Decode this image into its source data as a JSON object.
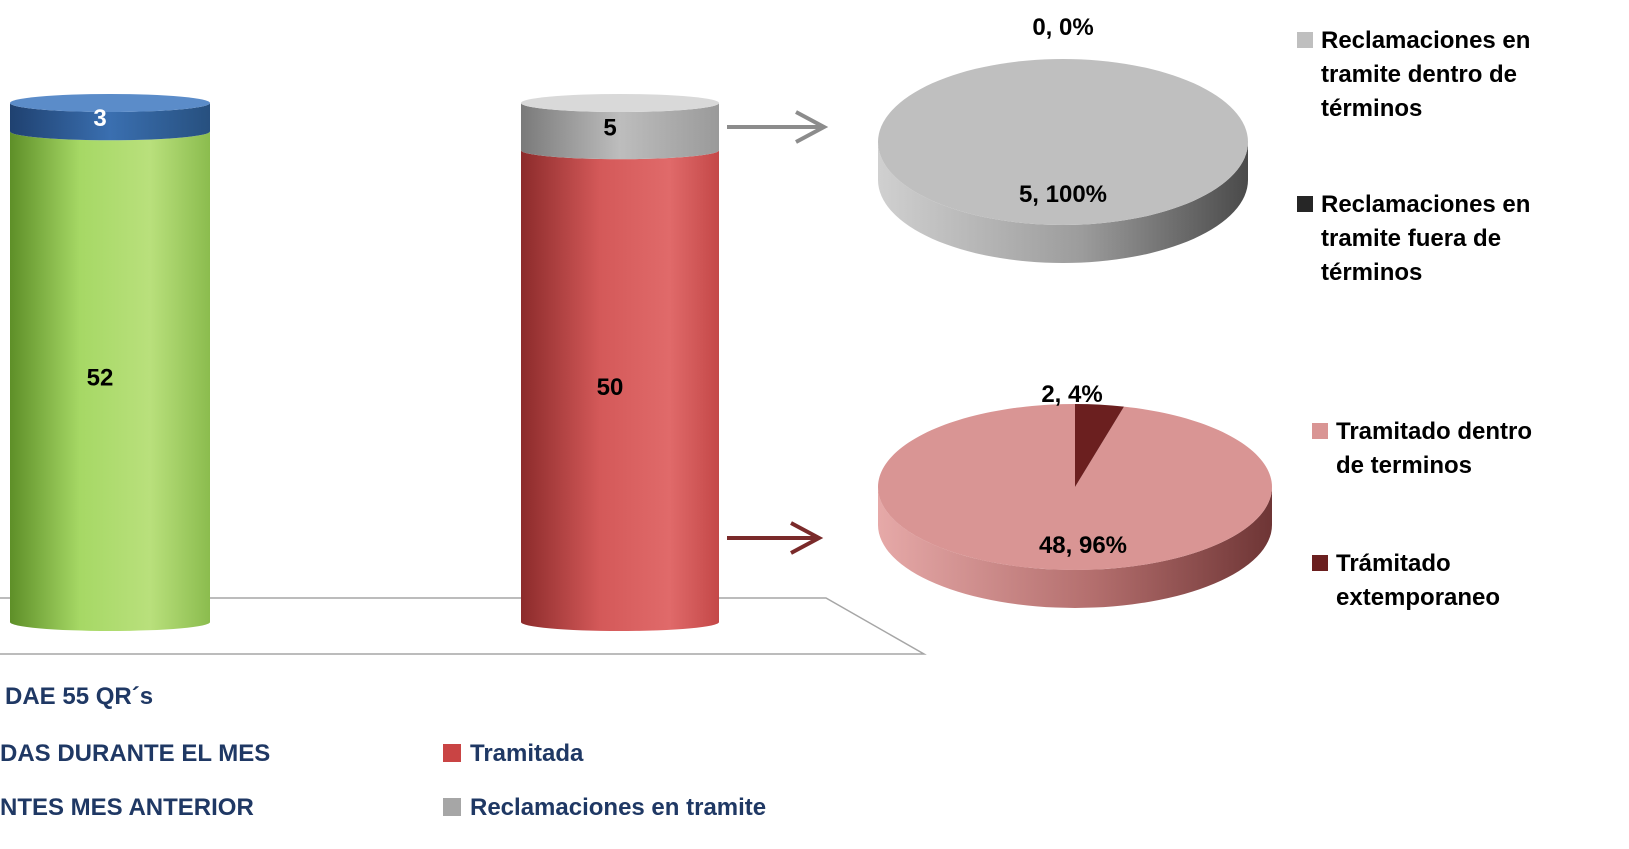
{
  "chart_data": [
    {
      "type": "bar",
      "subtype": "stacked-cylinder",
      "categories": [
        "",
        ""
      ],
      "series": [
        {
          "name": "",
          "values": [
            52,
            0
          ],
          "color": "#92c64a"
        },
        {
          "name": "",
          "values": [
            3,
            0
          ],
          "color": "#2e5e9e"
        },
        {
          "name": "Tramitada",
          "values": [
            0,
            50
          ],
          "color": "#cc4444"
        },
        {
          "name": "Reclamaciones en tramite",
          "values": [
            0,
            5
          ],
          "color": "#a6a6a6"
        }
      ],
      "data_labels": [
        "52",
        "3",
        "50",
        "5"
      ],
      "legend": [
        {
          "label": "DAE 55 QR´s",
          "color": "#1f3864",
          "marker": false
        },
        {
          "label": "DAS DURANTE EL MES",
          "color": "#1f3864",
          "marker": false
        },
        {
          "label": "NTES MES ANTERIOR",
          "color": "#1f3864",
          "marker": false
        },
        {
          "label": "Tramitada",
          "color": "#c94444",
          "marker": true
        },
        {
          "label": "Reclamaciones en tramite",
          "color": "#a6a6a6",
          "marker": true
        }
      ],
      "ylim": [
        0,
        55
      ]
    },
    {
      "type": "pie",
      "subtype": "3d",
      "slices": [
        {
          "name": "Reclamaciones en tramite dentro de términos",
          "value": 5,
          "percent": 100,
          "label": "5, 100%",
          "color": "#bfbfbf"
        },
        {
          "name": "Reclamaciones en tramite fuera de términos",
          "value": 0,
          "percent": 0,
          "label": "0, 0%",
          "color": "#262626"
        }
      ],
      "legend_position": "right"
    },
    {
      "type": "pie",
      "subtype": "3d",
      "slices": [
        {
          "name": "Tramitado dentro de terminos",
          "value": 48,
          "percent": 96,
          "label": "48, 96%",
          "color": "#d99594"
        },
        {
          "name": "Trámitado extemporaneo",
          "value": 2,
          "percent": 4,
          "label": "2, 4%",
          "color": "#6b1f1f"
        }
      ],
      "legend_position": "right"
    }
  ],
  "arrows": [
    {
      "from": "Reclamaciones en tramite",
      "to": "pie-1",
      "color": "#8c8c8c"
    },
    {
      "from": "Tramitada",
      "to": "pie-2",
      "color": "#7a2a2a"
    }
  ],
  "pie_legends": [
    {
      "items": [
        {
          "lines": [
            "Reclamaciones en",
            "tramite dentro de",
            "términos"
          ],
          "color": "#bfbfbf"
        },
        {
          "lines": [
            "Reclamaciones en",
            "tramite fuera de",
            "términos"
          ],
          "color": "#262626"
        }
      ]
    },
    {
      "items": [
        {
          "lines": [
            "Tramitado dentro",
            "de terminos"
          ],
          "color": "#d99594"
        },
        {
          "lines": [
            "Trámitado",
            "extemporaneo"
          ],
          "color": "#6b1f1f"
        }
      ]
    }
  ]
}
